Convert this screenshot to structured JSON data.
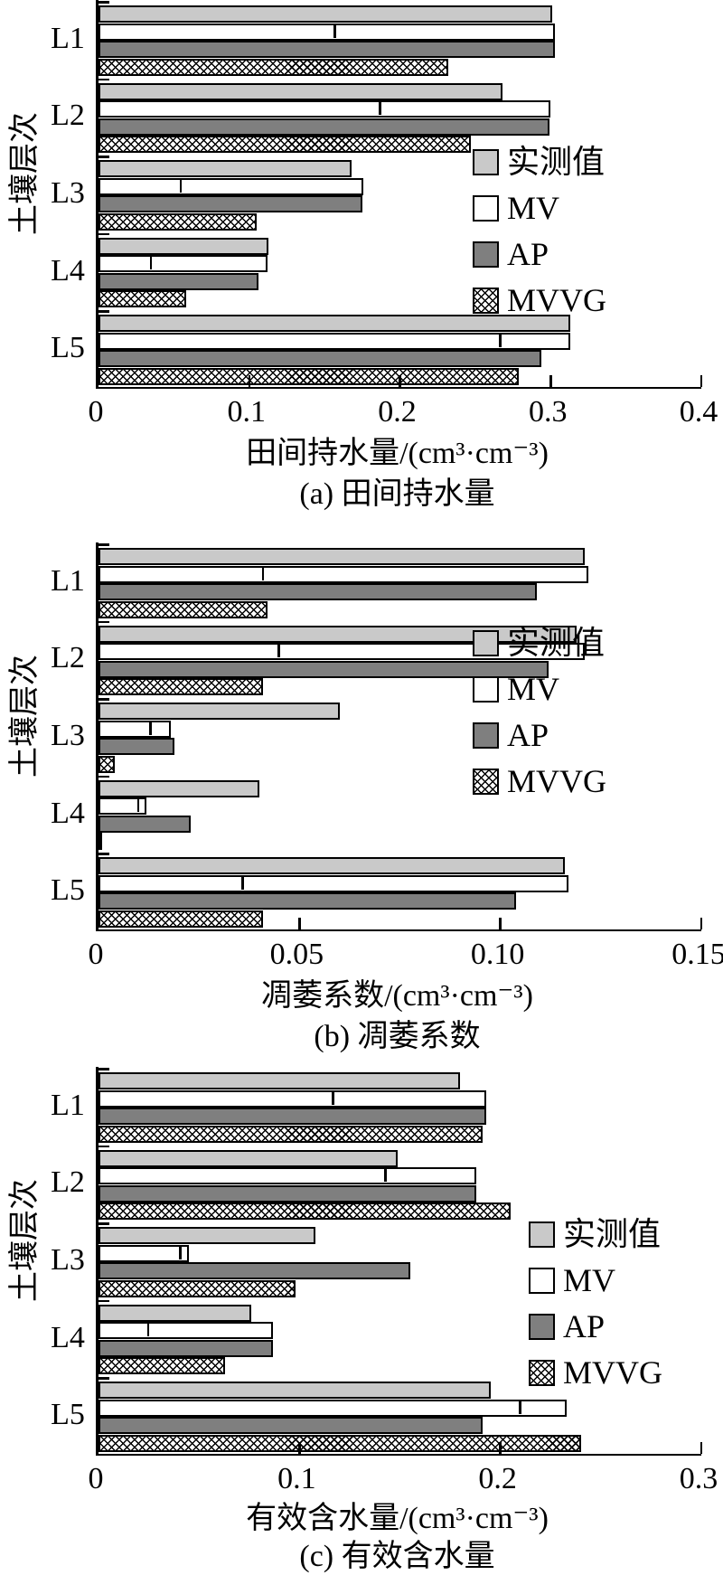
{
  "figure": {
    "y_axis_title": "土壤层次",
    "legend_labels": [
      "实测值",
      "MV",
      "AP",
      "MVVG"
    ],
    "colors": {
      "measured_fill": "#c9c9c9",
      "mv_fill": "#ffffff",
      "ap_fill": "#7f7f7f",
      "mvvg_fill": "crosshatch-black-on-white",
      "border": "#000000",
      "background": "#ffffff"
    }
  },
  "chart_data": [
    {
      "id": "a",
      "type": "bar",
      "orientation": "horizontal",
      "title": "(a) 田间持水量",
      "xlabel": "田间持水量/(cm³·cm⁻³)",
      "ylabel": "土壤层次",
      "categories": [
        "L1",
        "L2",
        "L3",
        "L4",
        "L5"
      ],
      "xlim": [
        0,
        0.4
      ],
      "xticks": [
        0,
        0.1,
        0.2,
        0.3,
        0.4
      ],
      "xtick_labels": [
        "0",
        "0.1",
        "0.2",
        "0.3",
        "0.4"
      ],
      "grid": false,
      "legend_position": "right-middle",
      "series": [
        {
          "name": "实测值",
          "style": "measured",
          "values": [
            0.301,
            0.268,
            0.168,
            0.113,
            0.313
          ]
        },
        {
          "name": "MV",
          "style": "mv",
          "values": [
            0.303,
            0.3,
            0.176,
            0.112,
            0.313
          ],
          "error_ticks": [
            0.157,
            0.187,
            0.055,
            0.035,
            0.267
          ]
        },
        {
          "name": "AP",
          "style": "ap",
          "values": [
            0.303,
            0.299,
            0.175,
            0.106,
            0.294
          ]
        },
        {
          "name": "MVVG",
          "style": "mvvg",
          "values": [
            0.232,
            0.247,
            0.105,
            0.058,
            0.279
          ]
        }
      ]
    },
    {
      "id": "b",
      "type": "bar",
      "orientation": "horizontal",
      "title": "(b) 凋萎系数",
      "xlabel": "凋萎系数/(cm³·cm⁻³)",
      "ylabel": "土壤层次",
      "categories": [
        "L1",
        "L2",
        "L3",
        "L4",
        "L5"
      ],
      "xlim": [
        0,
        0.15
      ],
      "xticks": [
        0,
        0.05,
        0.1,
        0.15
      ],
      "xtick_labels": [
        "0",
        "0.05",
        "0.10",
        "0.15"
      ],
      "grid": false,
      "legend_position": "right-upper",
      "series": [
        {
          "name": "实测值",
          "style": "measured",
          "values": [
            0.121,
            0.119,
            0.06,
            0.04,
            0.116
          ]
        },
        {
          "name": "MV",
          "style": "mv",
          "values": [
            0.122,
            0.121,
            0.018,
            0.012,
            0.117
          ],
          "error_ticks": [
            0.041,
            0.045,
            0.013,
            0.01,
            0.036
          ]
        },
        {
          "name": "AP",
          "style": "ap",
          "values": [
            0.109,
            0.112,
            0.019,
            0.023,
            0.104
          ]
        },
        {
          "name": "MVVG",
          "style": "mvvg",
          "values": [
            0.042,
            0.041,
            0.004,
            0.001,
            0.041
          ]
        }
      ]
    },
    {
      "id": "c",
      "type": "bar",
      "orientation": "horizontal",
      "title": "(c) 有效含水量",
      "xlabel": "有效含水量/(cm³·cm⁻³)",
      "ylabel": "土壤层次",
      "categories": [
        "L1",
        "L2",
        "L3",
        "L4",
        "L5"
      ],
      "xlim": [
        0,
        0.3
      ],
      "xticks": [
        0,
        0.1,
        0.2,
        0.3
      ],
      "xtick_labels": [
        "0",
        "0.1",
        "0.2",
        "0.3"
      ],
      "grid": false,
      "legend_position": "right-middle",
      "series": [
        {
          "name": "实测值",
          "style": "measured",
          "values": [
            0.18,
            0.149,
            0.108,
            0.076,
            0.195
          ]
        },
        {
          "name": "MV",
          "style": "mv",
          "values": [
            0.193,
            0.188,
            0.045,
            0.087,
            0.233
          ],
          "error_ticks": [
            0.117,
            0.143,
            0.041,
            0.025,
            0.21
          ]
        },
        {
          "name": "AP",
          "style": "ap",
          "values": [
            0.193,
            0.188,
            0.155,
            0.087,
            0.191
          ]
        },
        {
          "name": "MVVG",
          "style": "mvvg",
          "values": [
            0.191,
            0.205,
            0.098,
            0.063,
            0.24
          ]
        }
      ]
    }
  ]
}
